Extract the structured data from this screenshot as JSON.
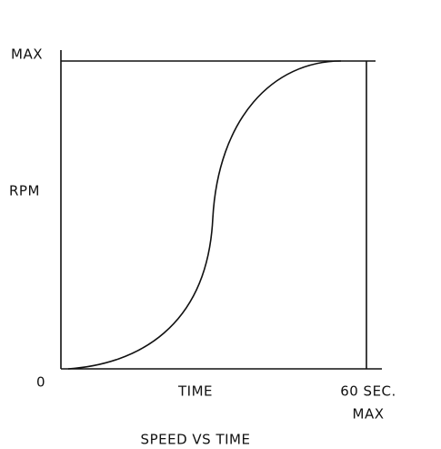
{
  "y_axis": {
    "top_label": "MAX",
    "label": "RPM",
    "origin_label": "0"
  },
  "x_axis": {
    "label": "TIME",
    "end_label": "60 SEC.",
    "end_sublabel": "MAX"
  },
  "caption": "SPEED VS TIME"
}
